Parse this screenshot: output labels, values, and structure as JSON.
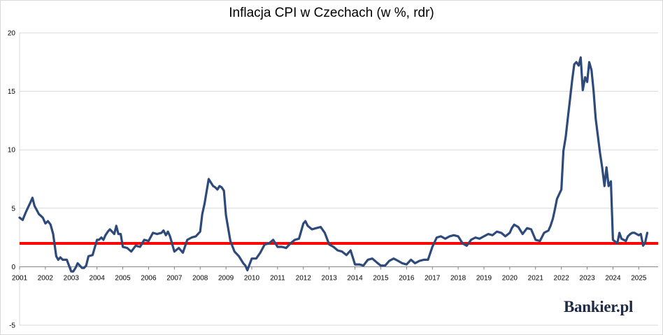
{
  "chart_data": {
    "type": "line",
    "title": "Inflacja CPI w Czechach (w %, rdr)",
    "xlabel": "",
    "ylabel": "",
    "ylim": [
      -5,
      20
    ],
    "yticks": [
      -5,
      0,
      5,
      10,
      15,
      20
    ],
    "xlim": [
      2001,
      2025.75
    ],
    "xticks": [
      "2001",
      "2002",
      "2003",
      "2004",
      "2005",
      "2006",
      "2007",
      "2008",
      "2009",
      "2010",
      "2011",
      "2012",
      "2013",
      "2014",
      "2015",
      "2016",
      "2017",
      "2018",
      "2019",
      "2020",
      "2021",
      "2022",
      "2023",
      "2024",
      "2025"
    ],
    "grid": "horizontal",
    "colors": {
      "series": "#2e4a7a",
      "target": "#ff0000",
      "grid": "#d9d9d9",
      "brand": "#1f2a44"
    },
    "series": [
      {
        "x": [
          2001.0,
          2001.12,
          2001.25,
          2001.42,
          2001.5,
          2001.58,
          2001.75,
          2001.9,
          2002.0,
          2002.1,
          2002.2,
          2002.3,
          2002.42,
          2002.5,
          2002.58,
          2002.67,
          2002.83,
          2003.0,
          2003.08,
          2003.17,
          2003.25,
          2003.42,
          2003.5,
          2003.58,
          2003.67,
          2003.83,
          2004.0,
          2004.08,
          2004.17,
          2004.25,
          2004.33,
          2004.42,
          2004.5,
          2004.67,
          2004.75,
          2004.83,
          2004.92,
          2005.0,
          2005.17,
          2005.33,
          2005.5,
          2005.67,
          2005.83,
          2006.0,
          2006.17,
          2006.33,
          2006.5,
          2006.58,
          2006.67,
          2006.75,
          2006.83,
          2007.0,
          2007.17,
          2007.33,
          2007.5,
          2007.67,
          2007.83,
          2008.0,
          2008.08,
          2008.17,
          2008.33,
          2008.5,
          2008.58,
          2008.67,
          2008.75,
          2008.83,
          2008.92,
          2009.0,
          2009.17,
          2009.33,
          2009.5,
          2009.67,
          2009.75,
          2009.83,
          2010.0,
          2010.17,
          2010.33,
          2010.5,
          2010.67,
          2010.83,
          2011.0,
          2011.17,
          2011.33,
          2011.5,
          2011.67,
          2011.83,
          2012.0,
          2012.08,
          2012.17,
          2012.33,
          2012.5,
          2012.67,
          2012.83,
          2013.0,
          2013.17,
          2013.33,
          2013.5,
          2013.67,
          2013.83,
          2014.0,
          2014.17,
          2014.33,
          2014.5,
          2014.67,
          2014.83,
          2015.0,
          2015.17,
          2015.33,
          2015.5,
          2015.67,
          2015.83,
          2016.0,
          2016.17,
          2016.33,
          2016.5,
          2016.67,
          2016.83,
          2017.0,
          2017.17,
          2017.33,
          2017.5,
          2017.67,
          2017.83,
          2018.0,
          2018.17,
          2018.33,
          2018.5,
          2018.67,
          2018.83,
          2019.0,
          2019.17,
          2019.33,
          2019.5,
          2019.67,
          2019.83,
          2020.0,
          2020.08,
          2020.17,
          2020.33,
          2020.5,
          2020.67,
          2020.83,
          2021.0,
          2021.17,
          2021.33,
          2021.5,
          2021.58,
          2021.67,
          2021.75,
          2021.83,
          2022.0,
          2022.08,
          2022.17,
          2022.25,
          2022.33,
          2022.42,
          2022.5,
          2022.58,
          2022.67,
          2022.75,
          2022.83,
          2022.92,
          2023.0,
          2023.08,
          2023.17,
          2023.25,
          2023.33,
          2023.5,
          2023.58,
          2023.67,
          2023.75,
          2023.83,
          2023.92,
          2024.0,
          2024.17,
          2024.25,
          2024.33,
          2024.5,
          2024.58,
          2024.67,
          2024.75,
          2024.83,
          2025.0,
          2025.08,
          2025.17,
          2025.25,
          2025.33
        ],
        "values": [
          4.2,
          4.0,
          4.7,
          5.5,
          5.9,
          5.2,
          4.5,
          4.2,
          3.7,
          3.9,
          3.6,
          2.8,
          0.9,
          0.6,
          0.8,
          0.6,
          0.6,
          -0.4,
          -0.4,
          -0.1,
          0.3,
          -0.1,
          -0.1,
          0.1,
          0.9,
          1.0,
          2.3,
          2.3,
          2.5,
          2.3,
          2.7,
          3.0,
          3.2,
          2.8,
          3.5,
          2.8,
          2.8,
          1.7,
          1.6,
          1.3,
          1.8,
          1.7,
          2.3,
          2.2,
          2.9,
          2.8,
          2.9,
          3.1,
          2.7,
          3.0,
          2.6,
          1.3,
          1.6,
          1.2,
          2.3,
          2.5,
          2.6,
          3.0,
          4.5,
          5.4,
          7.5,
          6.9,
          6.8,
          6.6,
          6.9,
          6.8,
          6.5,
          4.4,
          2.2,
          1.3,
          0.9,
          0.3,
          0.1,
          -0.3,
          0.7,
          0.7,
          1.2,
          1.9,
          2.0,
          2.3,
          1.7,
          1.7,
          1.6,
          2.0,
          2.3,
          2.4,
          3.7,
          3.9,
          3.5,
          3.2,
          3.3,
          3.4,
          2.9,
          1.9,
          1.7,
          1.4,
          1.3,
          1.0,
          1.4,
          0.2,
          0.2,
          0.1,
          0.6,
          0.7,
          0.4,
          0.1,
          0.1,
          0.5,
          0.7,
          0.5,
          0.3,
          0.2,
          0.6,
          0.3,
          0.5,
          0.6,
          0.6,
          1.7,
          2.5,
          2.6,
          2.4,
          2.6,
          2.7,
          2.6,
          2.0,
          1.8,
          2.3,
          2.5,
          2.4,
          2.6,
          2.8,
          2.7,
          3.0,
          2.9,
          2.6,
          2.9,
          3.3,
          3.6,
          3.4,
          2.8,
          3.3,
          3.2,
          2.3,
          2.2,
          2.9,
          3.1,
          3.5,
          4.1,
          4.9,
          5.8,
          6.6,
          9.9,
          11.1,
          12.7,
          14.2,
          16.0,
          17.3,
          17.5,
          17.2,
          17.9,
          15.1,
          16.2,
          15.8,
          17.5,
          16.8,
          15.0,
          12.7,
          9.7,
          8.5,
          6.9,
          8.5,
          6.9,
          7.3,
          2.3,
          2.0,
          2.9,
          2.4,
          2.2,
          2.6,
          2.8,
          2.9,
          2.9,
          2.7,
          2.8,
          1.8,
          2.1,
          2.9
        ],
        "name": ""
      }
    ],
    "target_line": 2.0
  },
  "brand": {
    "text": "Bankier.pl"
  }
}
